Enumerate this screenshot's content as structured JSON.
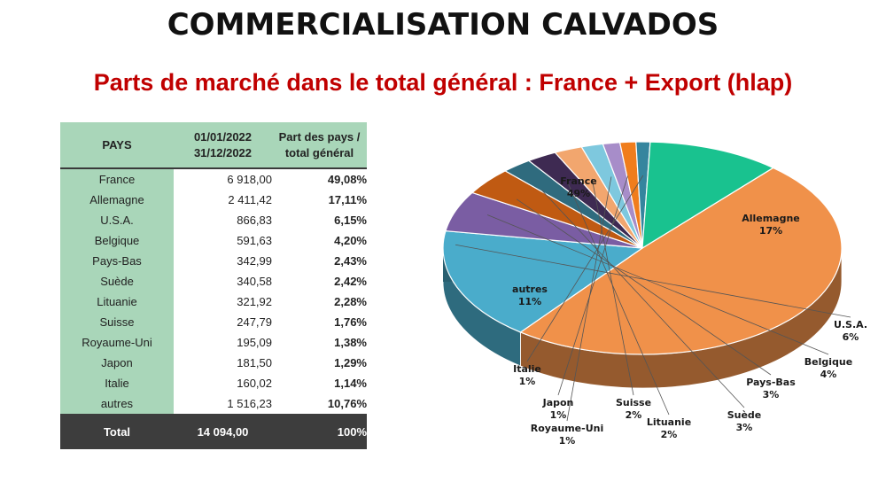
{
  "page": {
    "title": "COMMERCIALISATION CALVADOS",
    "subtitle": "Parts de marché dans le total général : France + Export (hlap)"
  },
  "table": {
    "headers": {
      "country": "PAYS",
      "period_line1": "01/01/2022",
      "period_line2": "31/12/2022",
      "share_line1": "Part des pays /",
      "share_line2": "total général"
    },
    "rows": [
      {
        "country": "France",
        "value": "6 918,00",
        "share": "49,08%"
      },
      {
        "country": "Allemagne",
        "value": "2 411,42",
        "share": "17,11%"
      },
      {
        "country": "U.S.A.",
        "value": "866,83",
        "share": "6,15%"
      },
      {
        "country": "Belgique",
        "value": "591,63",
        "share": "4,20%"
      },
      {
        "country": "Pays-Bas",
        "value": "342,99",
        "share": "2,43%"
      },
      {
        "country": "Suède",
        "value": "340,58",
        "share": "2,42%"
      },
      {
        "country": "Lituanie",
        "value": "321,92",
        "share": "2,28%"
      },
      {
        "country": "Suisse",
        "value": "247,79",
        "share": "1,76%"
      },
      {
        "country": "Royaume-Uni",
        "value": "195,09",
        "share": "1,38%"
      },
      {
        "country": "Japon",
        "value": "181,50",
        "share": "1,29%"
      },
      {
        "country": "Italie",
        "value": "160,02",
        "share": "1,14%"
      },
      {
        "country": "autres",
        "value": "1 516,23",
        "share": "10,76%"
      }
    ],
    "total": {
      "label": "Total",
      "value": "14 094,00",
      "share": "100%"
    }
  },
  "chart_data": {
    "type": "pie",
    "title": "",
    "slices": [
      {
        "label": "France",
        "value": 49.08,
        "pct_label": "49%",
        "color": "#f0914a"
      },
      {
        "label": "Allemagne",
        "value": 17.11,
        "pct_label": "17%",
        "color": "#4aaccb"
      },
      {
        "label": "U.S.A.",
        "value": 6.15,
        "pct_label": "6%",
        "color": "#7a5da3"
      },
      {
        "label": "Belgique",
        "value": 4.2,
        "pct_label": "4%",
        "color": "#c05a12"
      },
      {
        "label": "Pays-Bas",
        "value": 2.43,
        "pct_label": "3%",
        "color": "#2f6b7e"
      },
      {
        "label": "Suède",
        "value": 2.42,
        "pct_label": "3%",
        "color": "#3e2a52"
      },
      {
        "label": "Lituanie",
        "value": 2.28,
        "pct_label": "2%",
        "color": "#f2a66e"
      },
      {
        "label": "Suisse",
        "value": 1.76,
        "pct_label": "2%",
        "color": "#7ec8de"
      },
      {
        "label": "Royaume-Uni",
        "value": 1.38,
        "pct_label": "1%",
        "color": "#a78dc9"
      },
      {
        "label": "Japon",
        "value": 1.29,
        "pct_label": "1%",
        "color": "#f07d1c"
      },
      {
        "label": "Italie",
        "value": 1.14,
        "pct_label": "1%",
        "color": "#35859e"
      },
      {
        "label": "autres",
        "value": 10.76,
        "pct_label": "11%",
        "color": "#19c28f"
      }
    ]
  }
}
